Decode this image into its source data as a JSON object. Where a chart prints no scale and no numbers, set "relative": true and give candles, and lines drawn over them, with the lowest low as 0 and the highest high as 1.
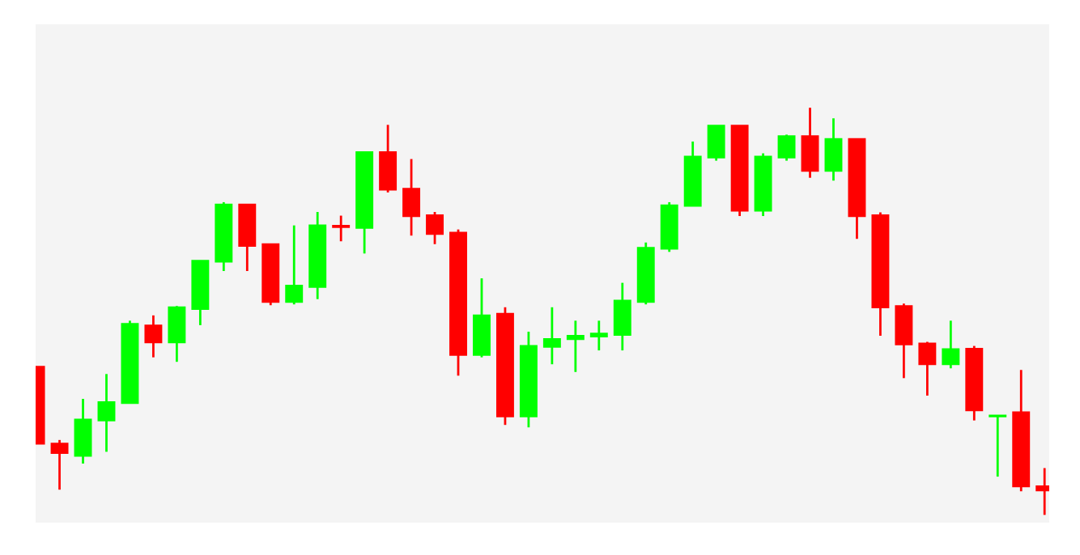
{
  "chart_data": {
    "type": "candlestick",
    "relative": true,
    "categories": [
      null,
      null,
      null,
      null,
      null,
      null,
      null,
      null,
      null,
      null,
      null,
      null,
      null,
      null,
      null,
      null,
      null,
      null,
      null,
      null,
      null,
      null,
      null,
      null,
      null,
      null,
      null,
      null,
      null,
      null,
      null,
      null,
      null,
      null,
      null,
      null,
      null,
      null,
      null,
      null,
      null,
      null,
      null,
      null
    ],
    "ohlc": [
      [
        0.364,
        0.364,
        0.175,
        0.175
      ],
      [
        0.175,
        0.184,
        0.062,
        0.152
      ],
      [
        0.145,
        0.285,
        0.126,
        0.234
      ],
      [
        0.232,
        0.346,
        0.155,
        0.277
      ],
      [
        0.275,
        0.477,
        0.275,
        0.469
      ],
      [
        0.465,
        0.49,
        0.387,
        0.424
      ],
      [
        0.424,
        0.513,
        0.376,
        0.51
      ],
      [
        0.506,
        0.624,
        0.466,
        0.624
      ],
      [
        0.622,
        0.768,
        0.599,
        0.762
      ],
      [
        0.762,
        0.762,
        0.599,
        0.661
      ],
      [
        0.665,
        0.665,
        0.515,
        0.523
      ],
      [
        0.523,
        0.711,
        0.517,
        0.563
      ],
      [
        0.56,
        0.744,
        0.53,
        0.711
      ],
      [
        0.71,
        0.735,
        0.672,
        0.707
      ],
      [
        0.705,
        0.891,
        0.642,
        0.891
      ],
      [
        0.891,
        0.958,
        0.792,
        0.799
      ],
      [
        0.801,
        0.874,
        0.686,
        0.734
      ],
      [
        0.736,
        0.744,
        0.665,
        0.69
      ],
      [
        0.693,
        0.701,
        0.342,
        0.393
      ],
      [
        0.393,
        0.581,
        0.387,
        0.49
      ],
      [
        0.494,
        0.51,
        0.221,
        0.242
      ],
      [
        0.242,
        0.45,
        0.215,
        0.415
      ],
      [
        0.413,
        0.51,
        0.37,
        0.432
      ],
      [
        0.432,
        0.477,
        0.351,
        0.44
      ],
      [
        0.438,
        0.477,
        0.404,
        0.445
      ],
      [
        0.442,
        0.57,
        0.404,
        0.526
      ],
      [
        0.523,
        0.669,
        0.517,
        0.656
      ],
      [
        0.654,
        0.768,
        0.646,
        0.76
      ],
      [
        0.759,
        0.917,
        0.759,
        0.88
      ],
      [
        0.878,
        0.956,
        0.87,
        0.956
      ],
      [
        0.956,
        0.956,
        0.734,
        0.747
      ],
      [
        0.747,
        0.888,
        0.734,
        0.88
      ],
      [
        0.878,
        0.934,
        0.87,
        0.93
      ],
      [
        0.93,
        1,
        0.828,
        0.845
      ],
      [
        0.845,
        0.974,
        0.821,
        0.923
      ],
      [
        0.923,
        0.923,
        0.678,
        0.734
      ],
      [
        0.736,
        0.743,
        0.44,
        0.51
      ],
      [
        0.513,
        0.519,
        0.336,
        0.419
      ],
      [
        0.421,
        0.425,
        0.293,
        0.37
      ],
      [
        0.37,
        0.477,
        0.36,
        0.407
      ],
      [
        0.408,
        0.415,
        0.232,
        0.257
      ],
      [
        0.242,
        0.244,
        0.094,
        0.244
      ],
      [
        0.252,
        0.356,
        0.058,
        0.07
      ],
      [
        0.07,
        0.115,
        0,
        0.06
      ]
    ],
    "colors": [
      "#ff0000",
      "#ff0000",
      "#00ff00",
      "#00ff00",
      "#00ff00",
      "#ff0000",
      "#00ff00",
      "#00ff00",
      "#00ff00",
      "#ff0000",
      "#ff0000",
      "#00ff00",
      "#00ff00",
      "#ff0000",
      "#00ff00",
      "#ff0000",
      "#ff0000",
      "#ff0000",
      "#ff0000",
      "#00ff00",
      "#ff0000",
      "#00ff00",
      "#00ff00",
      "#00ff00",
      "#00ff00",
      "#00ff00",
      "#00ff00",
      "#00ff00",
      "#00ff00",
      "#00ff00",
      "#ff0000",
      "#00ff00",
      "#00ff00",
      "#ff0000",
      "#00ff00",
      "#ff0000",
      "#ff0000",
      "#ff0000",
      "#ff0000",
      "#00ff00",
      "#ff0000",
      "#00ff00",
      "#ff0000",
      "#ff0000"
    ]
  }
}
